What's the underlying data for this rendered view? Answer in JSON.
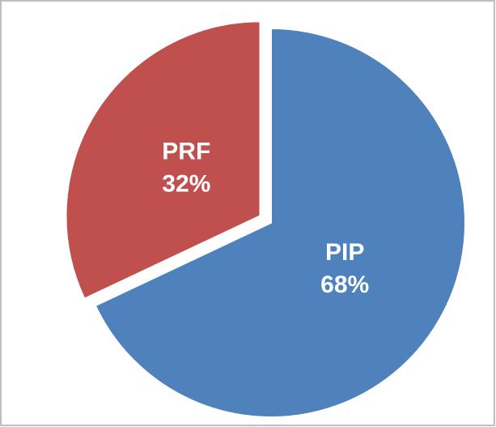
{
  "chart_data": {
    "type": "pie",
    "categories": [
      "PIP",
      "PRF"
    ],
    "values": [
      68,
      32
    ],
    "value_labels": [
      "68%",
      "32%"
    ],
    "colors": [
      "#4f81bd",
      "#c0504d"
    ],
    "explode": [
      false,
      true
    ]
  }
}
